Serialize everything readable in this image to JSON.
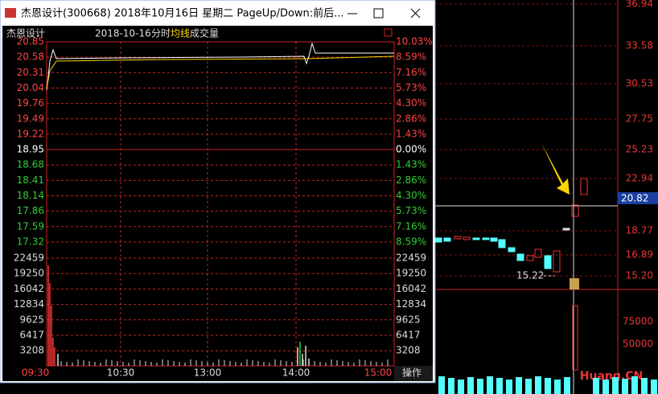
{
  "window": {
    "title": "杰恩设计(300668) 2018年10月16日 星期二 PageUp/Down:前后...",
    "header": {
      "name": "杰恩设计",
      "date": "2018-10-16",
      "view": "分时",
      "avg": "均线",
      "vol": "成交量"
    },
    "price_labels": [
      "20.85",
      "20.58",
      "20.31",
      "20.04",
      "19.76",
      "19.49",
      "19.22",
      "18.95",
      "18.68",
      "18.41",
      "18.14",
      "17.86",
      "17.59",
      "17.32"
    ],
    "pct_labels": [
      "10.03%",
      "8.59%",
      "7.16%",
      "5.73%",
      "4.30%",
      "2.86%",
      "1.43%",
      "0.00%",
      "1.43%",
      "2.86%",
      "4.30%",
      "5.73%",
      "7.16%",
      "8.59%"
    ],
    "volume_labels": [
      "22459",
      "19250",
      "16042",
      "12834",
      "9625",
      "6417",
      "3208"
    ],
    "times": [
      "09:30",
      "10:30",
      "13:00",
      "14:00",
      "15:00"
    ],
    "button": "操作"
  },
  "background": {
    "axis_labels": [
      "36.94",
      "33.58",
      "30.53",
      "27.75",
      "25.23",
      "22.94",
      "18.77",
      "16.89",
      "15.20"
    ],
    "current_price": "20.82",
    "annotation": "15.22",
    "volume_labels": [
      "75000",
      "50000"
    ],
    "watermark": "Huang.CN"
  }
}
